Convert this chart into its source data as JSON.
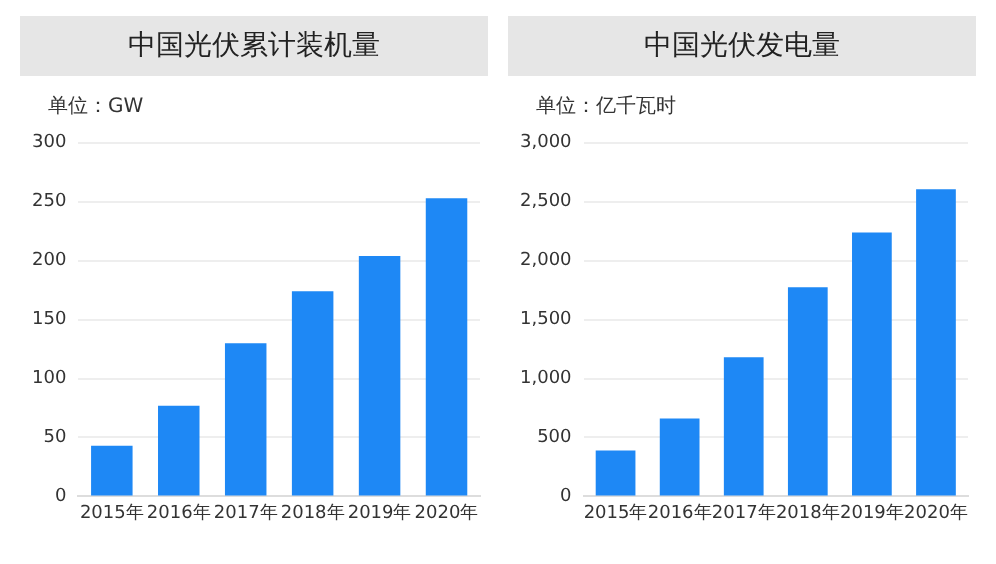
{
  "chart_data": [
    {
      "type": "bar",
      "title": "中国光伏累计装机量",
      "ylabel": "单位：GW",
      "categories": [
        "2015年",
        "2016年",
        "2017年",
        "2018年",
        "2019年",
        "2020年"
      ],
      "values": [
        43,
        77,
        130,
        174,
        204,
        253
      ],
      "color": "#1e88f5",
      "ylim": [
        0,
        300
      ],
      "yticks": [
        0,
        50,
        100,
        150,
        200,
        250,
        300
      ],
      "grid": "y"
    },
    {
      "type": "bar",
      "title": "中国光伏发电量",
      "ylabel": "单位：亿千瓦时",
      "categories": [
        "2015年",
        "2016年",
        "2017年",
        "2018年",
        "2019年",
        "2020年"
      ],
      "values": [
        390,
        660,
        1180,
        1775,
        2240,
        2605
      ],
      "color": "#1e88f5",
      "ylim": [
        0,
        3000
      ],
      "yticks": [
        {
          "value": 0,
          "label": "0"
        },
        {
          "value": 500,
          "label": "500"
        },
        {
          "value": 1000,
          "label": "1,000"
        },
        {
          "value": 1500,
          "label": "1,500"
        },
        {
          "value": 2000,
          "label": "2,000"
        },
        {
          "value": 2500,
          "label": "2,500"
        },
        {
          "value": 3000,
          "label": "3,000"
        }
      ],
      "grid": "y"
    }
  ]
}
